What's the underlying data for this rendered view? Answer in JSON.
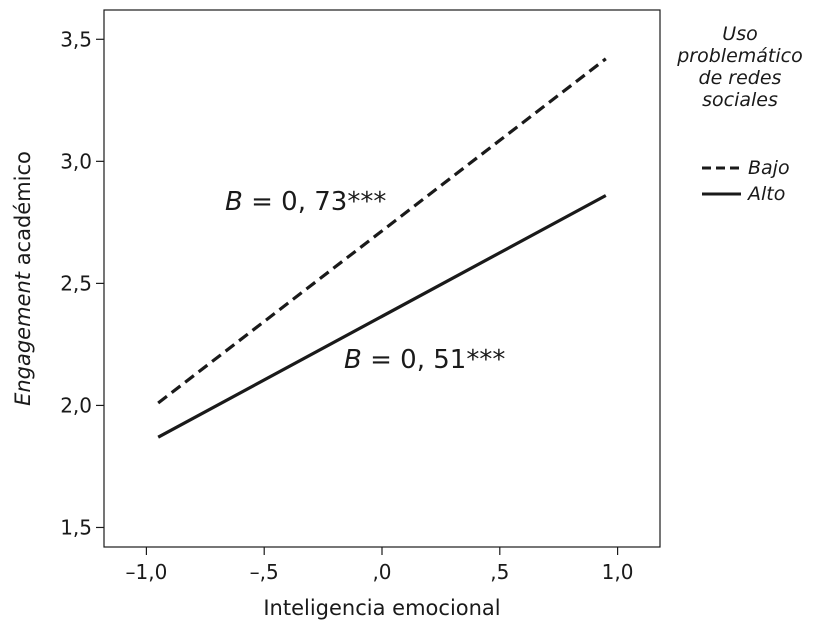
{
  "chart_data": {
    "type": "line",
    "xlabel": "Inteligencia emocional",
    "ylabel_italic": "Engagement",
    "ylabel_rest": " académico",
    "xlim": [
      -1.18,
      1.18
    ],
    "ylim": [
      1.42,
      3.62
    ],
    "x_ticks": [
      {
        "value": -1.0,
        "label": "–1,0"
      },
      {
        "value": -0.5,
        "label": "–,5"
      },
      {
        "value": 0.0,
        "label": ",0"
      },
      {
        "value": 0.5,
        "label": ",5"
      },
      {
        "value": 1.0,
        "label": "1,0"
      }
    ],
    "y_ticks": [
      {
        "value": 1.5,
        "label": "1,5"
      },
      {
        "value": 2.0,
        "label": "2,0"
      },
      {
        "value": 2.5,
        "label": "2,5"
      },
      {
        "value": 3.0,
        "label": "3,0"
      },
      {
        "value": 3.5,
        "label": "3,5"
      }
    ],
    "grid": false,
    "legend": {
      "title_lines": [
        "Uso",
        "problemático",
        "de redes",
        "sociales"
      ],
      "placement": "right"
    },
    "series": [
      {
        "name": "Bajo",
        "style": "dashed",
        "x": [
          -0.95,
          0.95
        ],
        "y": [
          2.01,
          3.42
        ],
        "color": "#1a1a1a"
      },
      {
        "name": "Alto",
        "style": "solid",
        "x": [
          -0.95,
          0.95
        ],
        "y": [
          1.87,
          2.86
        ],
        "color": "#1a1a1a"
      }
    ],
    "annotations": [
      {
        "italic": "B",
        "rest": " = 0, 73***",
        "series": "Bajo"
      },
      {
        "italic": "B",
        "rest": " = 0, 51***",
        "series": "Alto"
      }
    ]
  }
}
